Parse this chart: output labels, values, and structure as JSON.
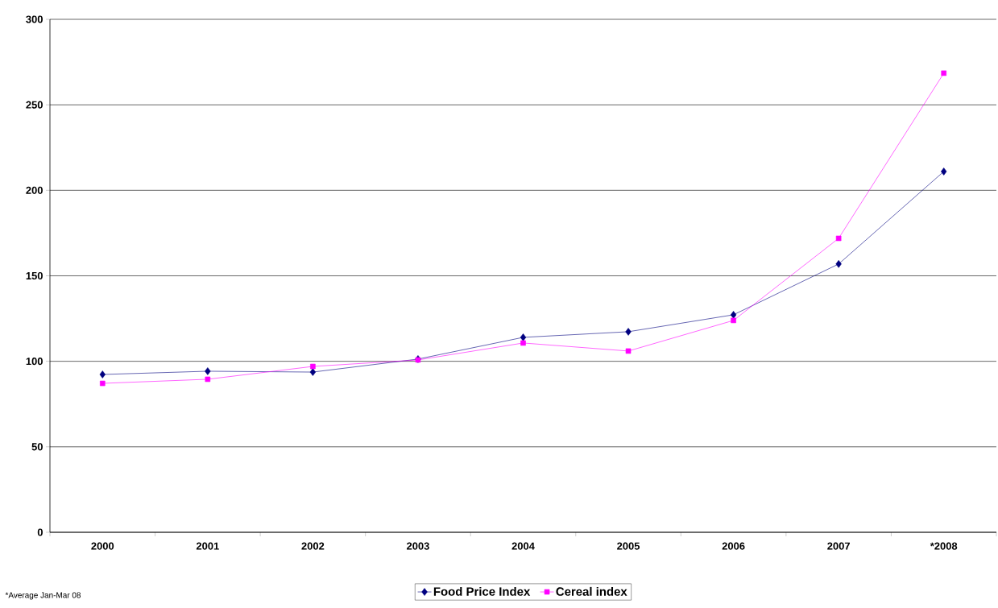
{
  "chart_data": {
    "type": "line",
    "categories": [
      "2000",
      "2001",
      "2002",
      "2003",
      "2004",
      "2005",
      "2006",
      "2007",
      "*2008"
    ],
    "series": [
      {
        "name": "Food Price Index",
        "color": "#000080",
        "marker": "diamond",
        "values": [
          92.3,
          94.2,
          93.7,
          101.3,
          114,
          117.3,
          127.2,
          156.9,
          211
        ]
      },
      {
        "name": "Cereal index",
        "color": "#ff00ff",
        "marker": "square",
        "values": [
          87.1,
          89.5,
          97,
          100.8,
          110.7,
          106,
          123.9,
          171.9,
          268.5
        ]
      }
    ],
    "ylim": [
      0,
      300
    ],
    "yticks": [
      0,
      50,
      100,
      150,
      200,
      250,
      300
    ],
    "grid": "y",
    "legend": "bottom",
    "line_style": "solid",
    "annotations": [
      "*Average Jan-Mar 08"
    ]
  }
}
